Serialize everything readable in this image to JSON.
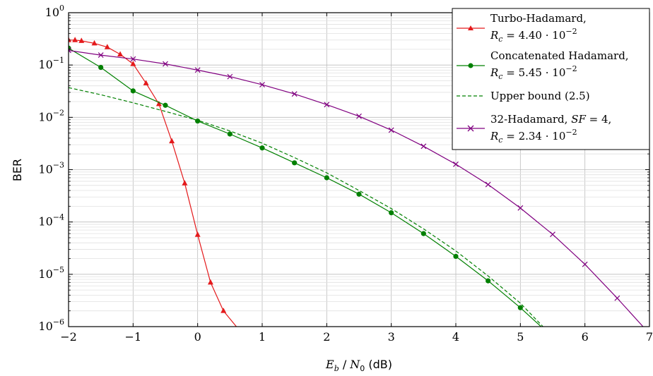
{
  "chart_data": {
    "type": "line",
    "title": "",
    "xlabel": "E_b / N_0 (dB)",
    "xlabel_parts": {
      "e": "E",
      "b": "b",
      "slash": " / ",
      "n": "N",
      "zero": "0",
      "unit": " (dB)"
    },
    "ylabel": "BER",
    "xlim": [
      -2,
      7
    ],
    "ylim": [
      1e-06,
      1
    ],
    "yscale": "log",
    "grid": true,
    "legend_position": "top-right",
    "x_ticks": [
      -2,
      -1,
      0,
      1,
      2,
      3,
      4,
      5,
      6,
      7
    ],
    "x_tick_labels": [
      "−2",
      "−1",
      "0",
      "1",
      "2",
      "3",
      "4",
      "5",
      "6",
      "7"
    ],
    "y_ticks": [
      {
        "value": 1,
        "base": "10",
        "exp": "0"
      },
      {
        "value": 0.1,
        "base": "10",
        "exp": "−1"
      },
      {
        "value": 0.01,
        "base": "10",
        "exp": "−2"
      },
      {
        "value": 0.001,
        "base": "10",
        "exp": "−3"
      },
      {
        "value": 0.0001,
        "base": "10",
        "exp": "−4"
      },
      {
        "value": 1e-05,
        "base": "10",
        "exp": "−5"
      },
      {
        "value": 1e-06,
        "base": "10",
        "exp": "−6"
      }
    ],
    "series": [
      {
        "name": "Turbo-Hadamard, R_c = 4.40 · 10^−2",
        "legend_lines": [
          "Turbo-Hadamard,",
          "Rc = 4.40 · 10−2"
        ],
        "rc_value": "4.40 · 10",
        "rc_exp": "−2",
        "color": "#e41a1c",
        "marker": "triangle",
        "dashed": false,
        "x": [
          -2,
          -1.9,
          -1.8,
          -1.6,
          -1.4,
          -1.2,
          -1.0,
          -0.8,
          -0.6,
          -0.4,
          -0.2,
          0.0,
          0.2,
          0.4,
          0.6
        ],
        "y": [
          0.3,
          0.3,
          0.29,
          0.26,
          0.22,
          0.16,
          0.105,
          0.045,
          0.018,
          0.0035,
          0.00055,
          5.7e-05,
          7e-06,
          2e-06,
          1e-06
        ],
        "markers_x": [
          -2,
          -1.9,
          -1.8,
          -1.6,
          -1.4,
          -1.2,
          -1.0,
          -0.8,
          -0.6,
          -0.4,
          -0.2,
          0.0,
          0.2,
          0.4
        ]
      },
      {
        "name": "Concatenated Hadamard, R_c = 5.45 · 10^−2",
        "legend_lines": [
          "Concatenated Hadamard,",
          "Rc = 5.45 · 10−2"
        ],
        "rc_value": "5.45 · 10",
        "rc_exp": "−2",
        "color": "#008000",
        "marker": "circle",
        "dashed": false,
        "x": [
          -2,
          -1.5,
          -1.0,
          -0.5,
          0.0,
          0.5,
          1.0,
          1.5,
          2.0,
          2.5,
          3.0,
          3.5,
          4.0,
          4.5,
          5.0,
          5.32
        ],
        "y": [
          0.21,
          0.09,
          0.032,
          0.017,
          0.0085,
          0.0048,
          0.0026,
          0.00135,
          0.0007,
          0.00034,
          0.00015,
          6e-05,
          2.2e-05,
          7.5e-06,
          2.3e-06,
          1e-06
        ],
        "markers_x": [
          -2,
          -1.5,
          -1.0,
          -0.5,
          0.0,
          0.5,
          1.0,
          1.5,
          2.0,
          2.5,
          3.0,
          3.5,
          4.0,
          4.5,
          5.0
        ]
      },
      {
        "name": "Upper bound (2.5)",
        "legend_lines": [
          "Upper bound (2.5)"
        ],
        "color": "#008000",
        "marker": "none",
        "dashed": true,
        "x": [
          -2,
          -1.5,
          -1.0,
          -0.5,
          0.0,
          0.5,
          1.0,
          1.5,
          2.0,
          2.5,
          3.0,
          3.5,
          4.0,
          4.5,
          5.0,
          5.35
        ],
        "y": [
          0.037,
          0.027,
          0.019,
          0.013,
          0.0088,
          0.0055,
          0.0032,
          0.0017,
          0.00087,
          0.0004,
          0.00018,
          7.4e-05,
          2.8e-05,
          9.3e-06,
          2.8e-06,
          1e-06
        ],
        "markers_x": []
      },
      {
        "name": "32-Hadamard, SF = 4, R_c = 2.34 · 10^−2",
        "legend_lines": [
          "32-Hadamard, SF = 4,",
          "Rc = 2.34 · 10−2"
        ],
        "sf_value": "4",
        "rc_value": "2.34 · 10",
        "rc_exp": "−2",
        "color": "#800080",
        "marker": "cross",
        "dashed": false,
        "x": [
          -2,
          -1.5,
          -1.0,
          -0.5,
          0.0,
          0.5,
          1.0,
          1.5,
          2.0,
          2.5,
          3.0,
          3.5,
          4.0,
          4.5,
          5.0,
          5.5,
          6.0,
          6.5,
          6.9
        ],
        "y": [
          0.19,
          0.155,
          0.13,
          0.105,
          0.08,
          0.06,
          0.042,
          0.028,
          0.0175,
          0.0105,
          0.0057,
          0.0028,
          0.00127,
          0.00052,
          0.000185,
          5.8e-05,
          1.55e-05,
          3.5e-06,
          1e-06
        ],
        "markers_x": [
          -2,
          -1.5,
          -1.0,
          -0.5,
          0.0,
          0.5,
          1.0,
          1.5,
          2.0,
          2.5,
          3.0,
          3.5,
          4.0,
          4.5,
          5.0,
          5.5,
          6.0,
          6.5
        ]
      }
    ]
  }
}
